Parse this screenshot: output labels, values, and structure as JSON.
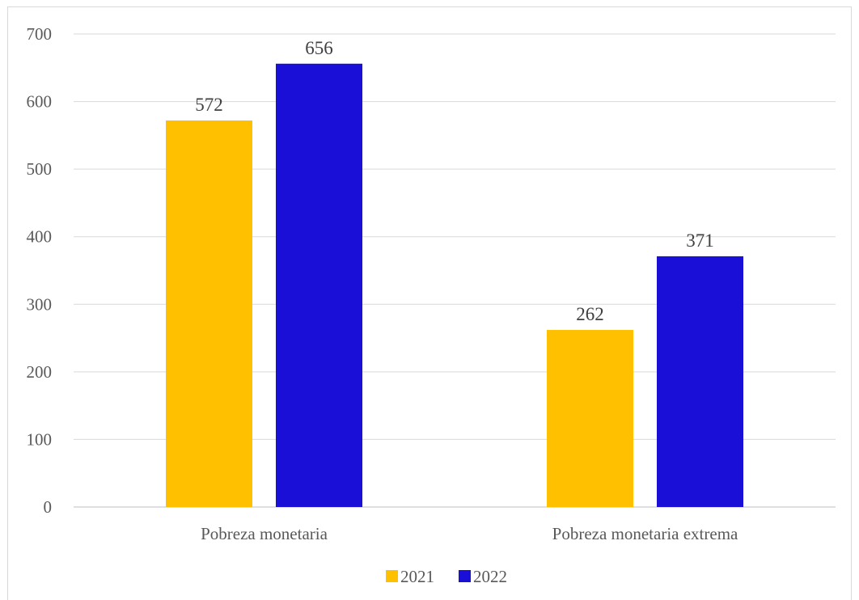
{
  "chart_data": {
    "type": "bar",
    "categories": [
      "Pobreza monetaria",
      "Pobreza monetaria extrema"
    ],
    "series": [
      {
        "name": "2021",
        "values": [
          572,
          262
        ],
        "color": "#FFC000"
      },
      {
        "name": "2022",
        "values": [
          656,
          371
        ],
        "color": "#1A0FD6"
      }
    ],
    "ylim": [
      0,
      700
    ],
    "yticks": [
      0,
      100,
      200,
      300,
      400,
      500,
      600,
      700
    ],
    "grid": true,
    "legend_position": "bottom",
    "data_labels": true
  }
}
